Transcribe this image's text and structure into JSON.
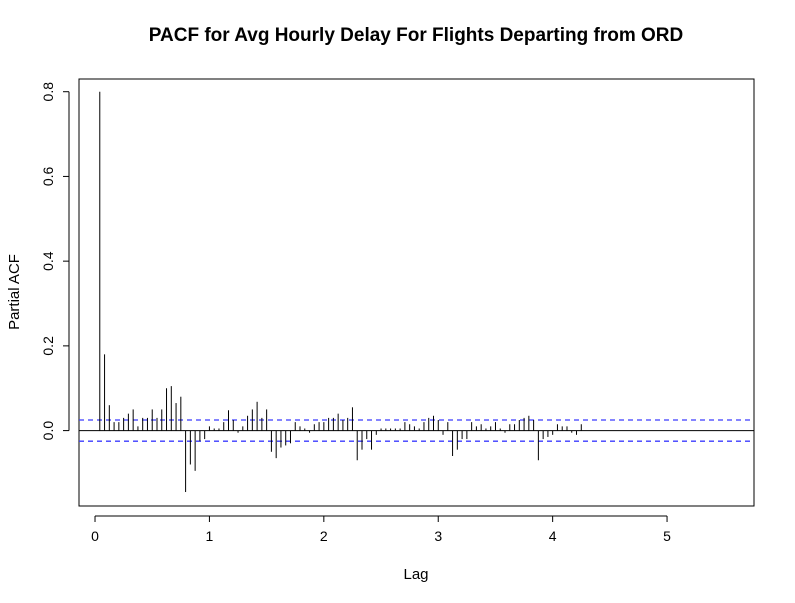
{
  "chart_data": {
    "type": "bar",
    "title": "PACF for Avg Hourly Delay For Flights Departing from ORD",
    "xlabel": "Lag",
    "ylabel": "Partial ACF",
    "xlim": [
      -0.14,
      5.76
    ],
    "ylim": [
      -0.178,
      0.83
    ],
    "x_ticks": [
      "0",
      "1",
      "2",
      "3",
      "4",
      "5"
    ],
    "x_tick_values": [
      0,
      1,
      2,
      3,
      4,
      5
    ],
    "y_ticks": [
      "0.0",
      "0.2",
      "0.4",
      "0.6",
      "0.8"
    ],
    "y_tick_values": [
      0.0,
      0.2,
      0.4,
      0.6,
      0.8
    ],
    "confidence_bound": 0.025,
    "lag_step": 0.04167,
    "series": [
      {
        "values": [
          0.8,
          0.18,
          0.06,
          0.02,
          0.02,
          0.03,
          0.04,
          0.05,
          0.01,
          0.03,
          0.03,
          0.05,
          0.03,
          0.05,
          0.1,
          0.105,
          0.065,
          0.08,
          -0.145,
          -0.08,
          -0.095,
          -0.025,
          -0.02,
          0.01,
          0.005,
          0.005,
          0.02,
          0.048,
          0.025,
          -0.005,
          0.01,
          0.035,
          0.05,
          0.068,
          0.03,
          0.05,
          -0.05,
          -0.065,
          -0.04,
          -0.035,
          -0.03,
          0.02,
          0.01,
          0.005,
          -0.005,
          0.015,
          0.02,
          0.02,
          0.03,
          0.03,
          0.04,
          0.025,
          0.03,
          0.055,
          -0.07,
          -0.045,
          -0.02,
          -0.045,
          -0.01,
          0.005,
          0.005,
          0.005,
          0.005,
          0.005,
          0.02,
          0.015,
          0.01,
          0.005,
          0.02,
          0.03,
          0.035,
          0.025,
          -0.01,
          0.02,
          -0.06,
          -0.045,
          -0.02,
          -0.02,
          0.02,
          0.01,
          0.015,
          0.005,
          0.01,
          0.02,
          0.005,
          -0.005,
          0.015,
          0.015,
          0.025,
          0.03,
          0.035,
          0.025,
          -0.07,
          -0.02,
          -0.015,
          -0.01,
          0.015,
          0.01,
          0.01,
          -0.005,
          -0.01,
          0.015
        ]
      }
    ]
  }
}
